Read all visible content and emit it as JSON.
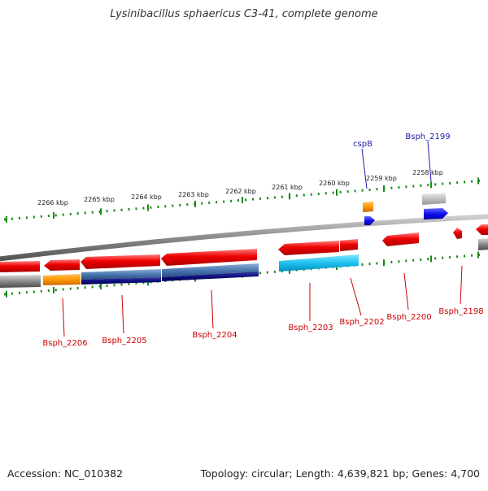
{
  "title": "Lysinibacillus sphaericus C3-41, complete genome",
  "footer": {
    "accession": "Accession: NC_010382",
    "summary": "Topology: circular; Length: 4,639,821 bp; Genes: 4,700"
  },
  "colors": {
    "backbone": "#8a8a8a",
    "tick": "#1a8a1a",
    "label_red": "#cc0000",
    "label_blue": "#1a1aaa",
    "tick_text": "#222222"
  },
  "ticks": [
    {
      "label": "2266 kbp"
    },
    {
      "label": "2265 kbp"
    },
    {
      "label": "2264 kbp"
    },
    {
      "label": "2263 kbp"
    },
    {
      "label": "2262 kbp"
    },
    {
      "label": "2261 kbp"
    },
    {
      "label": "2260 kbp"
    },
    {
      "label": "2259 kbp"
    },
    {
      "label": "2258 kbp"
    }
  ],
  "labels": {
    "g2206": "Bsph_2206",
    "g2205": "Bsph_2205",
    "g2204": "Bsph_2204",
    "g2203": "Bsph_2203",
    "g2202": "Bsph_2202",
    "g2200": "Bsph_2200",
    "g2198": "Bsph_2198",
    "cspB": "cspB",
    "g2199": "Bsph_2199"
  }
}
